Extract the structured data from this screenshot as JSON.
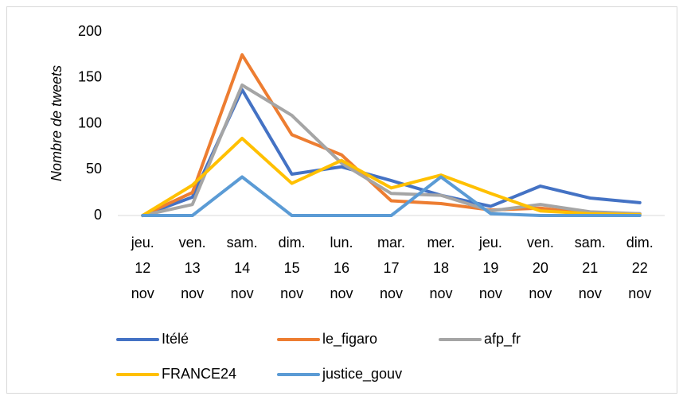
{
  "chart_data": {
    "type": "line",
    "ylabel": "Nombre de tweets",
    "categories": [
      "jeu.\n12\nnov",
      "ven.\n13\nnov",
      "sam.\n14\nnov",
      "dim.\n15\nnov",
      "lun.\n16\nnov",
      "mar.\n17\nnov",
      "mer.\n18\nnov",
      "jeu.\n19\nnov",
      "ven.\n20\nnov",
      "sam.\n21\nnov",
      "dim.\n22\nnov"
    ],
    "series": [
      {
        "name": "Itélé",
        "color": "#4472c4",
        "values": [
          0,
          20,
          137,
          45,
          53,
          38,
          22,
          10,
          32,
          19,
          14
        ]
      },
      {
        "name": "le_figaro",
        "color": "#ed7d31",
        "values": [
          0,
          25,
          175,
          88,
          66,
          16,
          13,
          6,
          8,
          2,
          2
        ]
      },
      {
        "name": "afp_fr",
        "color": "#a5a5a5",
        "values": [
          0,
          12,
          142,
          109,
          57,
          24,
          22,
          5,
          12,
          4,
          2
        ]
      },
      {
        "name": "FRANCE24",
        "color": "#ffc000",
        "values": [
          0,
          33,
          84,
          35,
          60,
          30,
          44,
          24,
          5,
          2,
          1
        ]
      },
      {
        "name": "justice_gouv",
        "color": "#5b9bd5",
        "values": [
          0,
          0,
          42,
          0,
          0,
          0,
          42,
          2,
          0,
          0,
          0
        ]
      }
    ],
    "ylim": [
      0,
      200
    ],
    "yticks": [
      0,
      50,
      100,
      150,
      200
    ],
    "grid": false,
    "legend": "bottom"
  }
}
